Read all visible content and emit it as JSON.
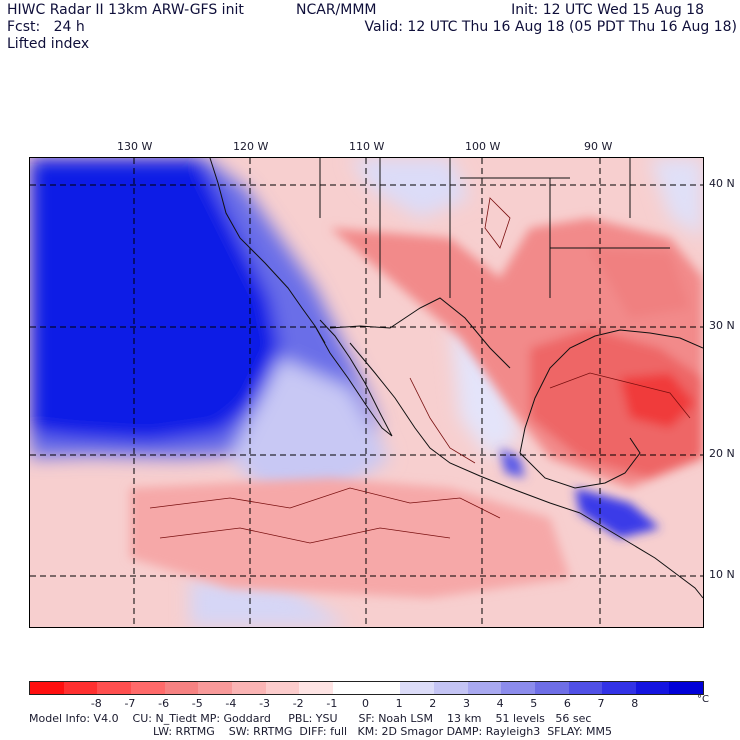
{
  "header": {
    "title_left": "HIWC Radar II 13km ARW-GFS init",
    "title_mid": "NCAR/MMM",
    "init": "Init: 12 UTC Wed 15 Aug 18",
    "fcst": "Fcst:   24 h",
    "valid": "Valid: 12 UTC Thu 16 Aug 18 (05 PDT Thu 16 Aug 18)",
    "field": "Lifted index"
  },
  "map": {
    "lon_labels": [
      "130 W",
      "120 W",
      "110 W",
      "100 W",
      "90 W"
    ],
    "lat_labels": [
      "40 N",
      "30 N",
      "20 N",
      "10 N"
    ],
    "ocean_color": "#0a2ae0",
    "land_color": "#f3a7a7"
  },
  "colorbar": {
    "colors": [
      "#ff0f0f",
      "#ff3030",
      "#ff4f4f",
      "#ff6a6a",
      "#f68282",
      "#f89a9a",
      "#fab4b4",
      "#fccccc",
      "#fee4e4",
      "#ffffff",
      "#ffffff",
      "#dcdcf8",
      "#c4c4f4",
      "#a9a9f0",
      "#8c8cec",
      "#6e6ee6",
      "#5050e6",
      "#3232e6",
      "#1414e0",
      "#0000d8"
    ],
    "labels": [
      "-8",
      "-7",
      "-6",
      "-5",
      "-4",
      "-3",
      "-2",
      "-1",
      "0",
      "1",
      "2",
      "3",
      "4",
      "5",
      "6",
      "7",
      "8"
    ],
    "unit": "°C"
  },
  "footer": {
    "line1": "Model Info: V4.0    CU: N_Tiedt MP: Goddard     PBL: YSU      SF: Noah LSM    13 km    51 levels   56 sec",
    "line2": "LW: RRTMG    SW: RRTMG  DIFF: full   KM: 2D Smagor DAMP: Rayleigh3  SFLAY: MM5"
  }
}
